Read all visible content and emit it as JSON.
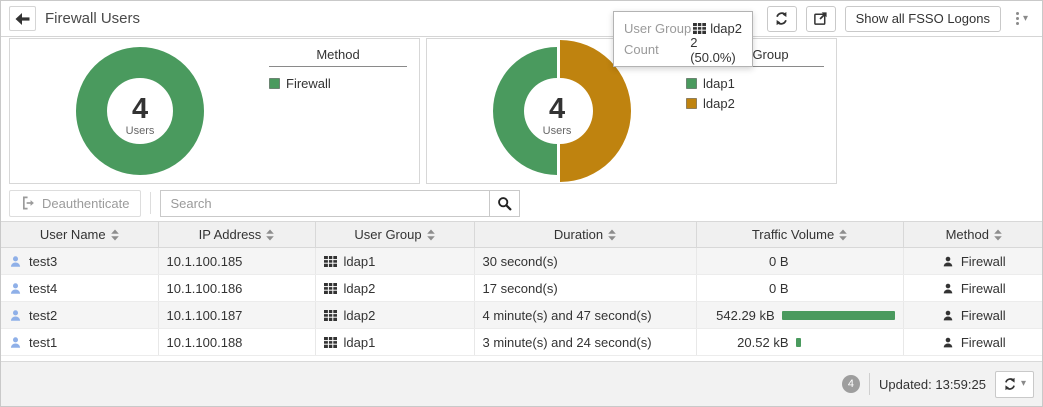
{
  "colors": {
    "green": "#4a9a5e",
    "orange": "#bf830f",
    "user_blue": "#8fb0e8",
    "icon_dark": "#333333"
  },
  "icons": {
    "caret_down": "▾"
  },
  "titlebar": {
    "title": "Firewall Users",
    "show_all_label": "Show all FSSO Logons"
  },
  "tooltip": {
    "row1_label": "User Group",
    "row1_value": "ldap2",
    "row2_label": "Count",
    "row2_value": "2 (50.0%)"
  },
  "chart_data": [
    {
      "type": "pie",
      "title": "Method",
      "center_value": "4",
      "center_label": "Users",
      "legend_position": "right",
      "slices": [
        {
          "label": "Firewall",
          "value": 4,
          "pct": 100.0,
          "color": "#4a9a5e"
        }
      ]
    },
    {
      "type": "pie",
      "title": "User Group",
      "center_value": "4",
      "center_label": "Users",
      "legend_position": "right",
      "slices": [
        {
          "label": "ldap1",
          "value": 2,
          "pct": 50.0,
          "color": "#4a9a5e"
        },
        {
          "label": "ldap2",
          "value": 2,
          "pct": 50.0,
          "color": "#bf830f",
          "highlighted": true
        }
      ]
    }
  ],
  "toolbar": {
    "deauthenticate_label": "Deauthenticate",
    "search_placeholder": "Search"
  },
  "table": {
    "columns": [
      {
        "label": "User Name",
        "sortable": true
      },
      {
        "label": "IP Address",
        "sortable": true
      },
      {
        "label": "User Group",
        "sortable": true
      },
      {
        "label": "Duration",
        "sortable": true
      },
      {
        "label": "Traffic Volume",
        "sortable": true
      },
      {
        "label": "Method",
        "sortable": true
      }
    ],
    "rows": [
      {
        "user": "test3",
        "ip": "10.1.100.185",
        "group": "ldap1",
        "duration": "30 second(s)",
        "traffic": "0 B",
        "traffic_bar_pct": 0,
        "method": "Firewall"
      },
      {
        "user": "test4",
        "ip": "10.1.100.186",
        "group": "ldap2",
        "duration": "17 second(s)",
        "traffic": "0 B",
        "traffic_bar_pct": 0,
        "method": "Firewall"
      },
      {
        "user": "test2",
        "ip": "10.1.100.187",
        "group": "ldap2",
        "duration": "4 minute(s) and 47 second(s)",
        "traffic": "542.29 kB",
        "traffic_bar_pct": 100,
        "method": "Firewall"
      },
      {
        "user": "test1",
        "ip": "10.1.100.188",
        "group": "ldap1",
        "duration": "3 minute(s) and 24 second(s)",
        "traffic": "20.52 kB",
        "traffic_bar_pct": 4,
        "method": "Firewall"
      }
    ]
  },
  "footer": {
    "count": "4",
    "updated": "Updated: 13:59:25"
  }
}
